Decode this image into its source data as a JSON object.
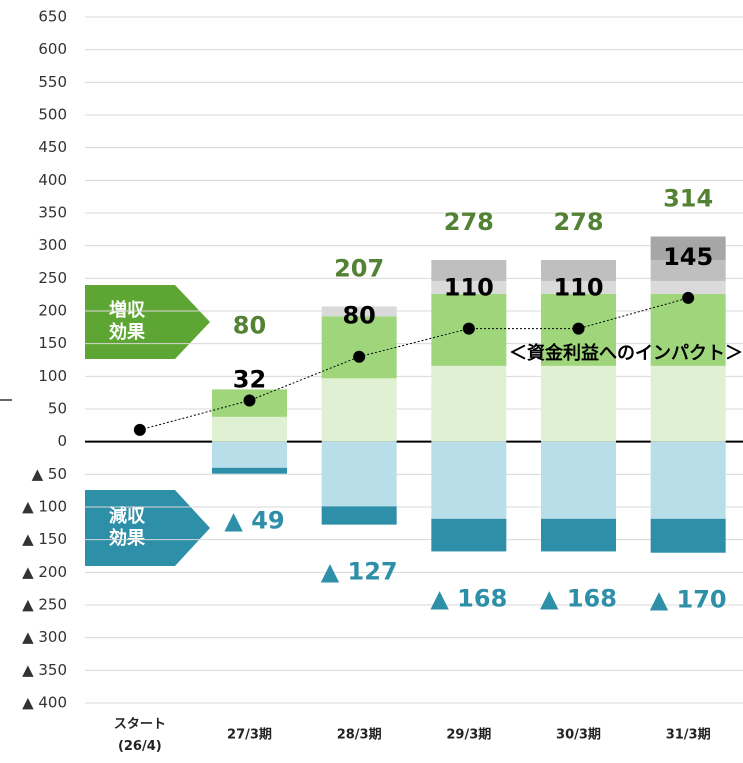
{
  "chart_data": {
    "type": "stacked_bar_line",
    "categories": [
      "スタート\n(26/4)",
      "27/3期",
      "28/3期",
      "29/3期",
      "30/3期",
      "31/3期"
    ],
    "ylim": [
      -400,
      650
    ],
    "yticks": [
      {
        "value": -400,
        "label": "▲ 400"
      },
      {
        "value": -350,
        "label": "▲ 350"
      },
      {
        "value": -300,
        "label": "▲ 300"
      },
      {
        "value": -250,
        "label": "▲ 250"
      },
      {
        "value": -200,
        "label": "▲ 200"
      },
      {
        "value": -150,
        "label": "▲ 150"
      },
      {
        "value": -100,
        "label": "▲ 100"
      },
      {
        "value": -50,
        "label": "▲ 50"
      },
      0,
      50,
      100,
      150,
      200,
      250,
      300,
      350,
      400,
      450,
      500,
      550,
      600,
      650
    ],
    "grid": true,
    "series": [
      {
        "color": "#e0f0d2",
        "values": [
          null,
          38,
          97,
          116,
          116,
          116
        ]
      },
      {
        "color": "#9fd67c",
        "values": [
          null,
          42,
          95,
          110,
          110,
          110
        ]
      },
      {
        "color": "#dadada",
        "values": [
          null,
          null,
          15,
          20,
          20,
          20
        ]
      },
      {
        "color": "#bfbfbf",
        "values": [
          null,
          null,
          null,
          32,
          32,
          32
        ]
      },
      {
        "color": "#a6a6a6",
        "values": [
          null,
          null,
          null,
          null,
          null,
          36
        ]
      },
      {
        "color": "#b8dfe9",
        "values": [
          null,
          -40,
          -99,
          -118,
          -118,
          -118
        ]
      },
      {
        "color": "#2e8fa8",
        "values": [
          null,
          -9,
          -28,
          -50,
          -50,
          -52
        ]
      }
    ],
    "positive_totals": {
      "color": "#548235",
      "values": [
        null,
        80,
        207,
        278,
        278,
        314
      ]
    },
    "negative_totals": {
      "color": "#2e8fa8",
      "values": [
        null,
        -49,
        -127,
        -168,
        -168,
        -170
      ],
      "value_labels": [
        null,
        "▲ 49",
        "▲ 127",
        "▲ 168",
        "▲ 168",
        "▲ 170"
      ]
    },
    "line": {
      "color": "#000000",
      "values": [
        18,
        63,
        130,
        173,
        173,
        220
      ]
    },
    "impact": {
      "values": [
        null,
        32,
        80,
        110,
        110,
        145
      ]
    },
    "annotations": {
      "increase": "増収\n効果",
      "decrease": "減収\n効果",
      "impact": "＜資金利益へのインパクト＞"
    }
  }
}
